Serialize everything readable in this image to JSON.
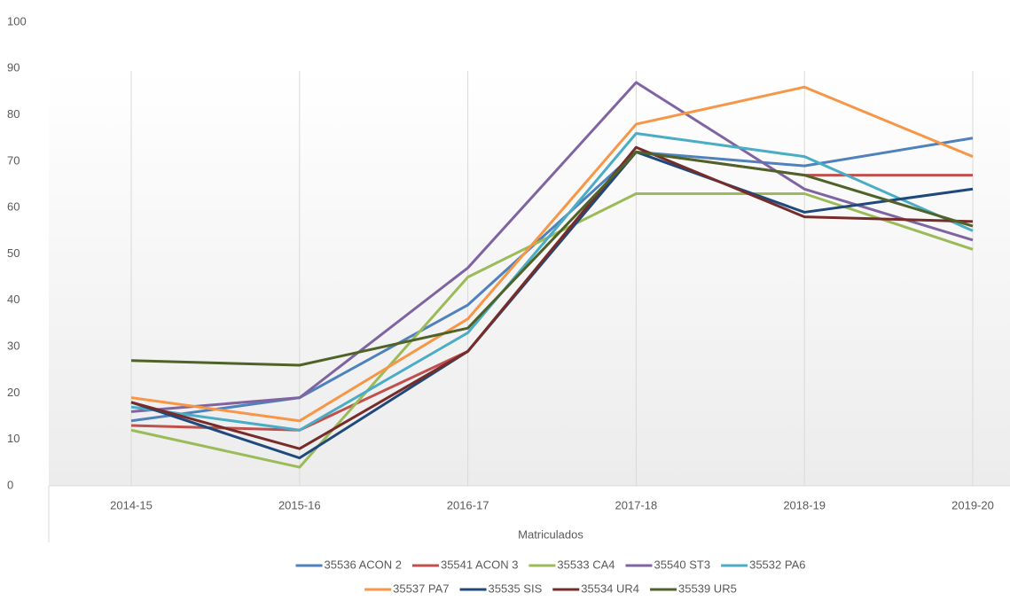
{
  "chart_data": {
    "type": "line",
    "x_label": "Matriculados",
    "categories": [
      "2014-15",
      "2015-16",
      "2016-17",
      "2017-18",
      "2018-19",
      "2019-20"
    ],
    "ylim": [
      0,
      100
    ],
    "yticks": [
      0,
      10,
      20,
      30,
      40,
      50,
      60,
      70,
      80,
      90,
      100
    ],
    "series": [
      {
        "name": "35536 ACON 2",
        "color": "#4f81bd",
        "values": [
          14,
          19,
          39,
          72,
          69,
          75
        ]
      },
      {
        "name": "35541 ACON 3",
        "color": "#c0504d",
        "values": [
          13,
          12,
          29,
          72,
          67,
          67
        ]
      },
      {
        "name": "35533 CA4",
        "color": "#9bbb59",
        "values": [
          12,
          4,
          45,
          63,
          63,
          51
        ]
      },
      {
        "name": "35540 ST3",
        "color": "#8064a2",
        "values": [
          16,
          19,
          47,
          87,
          64,
          53
        ]
      },
      {
        "name": "35532 PA6",
        "color": "#4bacc6",
        "values": [
          17,
          12,
          33,
          76,
          71,
          55
        ]
      },
      {
        "name": "35537 PA7",
        "color": "#f79646",
        "values": [
          19,
          14,
          36,
          78,
          86,
          71
        ]
      },
      {
        "name": "35535 SIS",
        "color": "#1f497d",
        "values": [
          18,
          6,
          29,
          72,
          59,
          64
        ]
      },
      {
        "name": "35534 UR4",
        "color": "#772c2a",
        "values": [
          18,
          8,
          29,
          73,
          58,
          57
        ]
      },
      {
        "name": "35539 UR5",
        "color": "#4f6228",
        "values": [
          27,
          26,
          34,
          72,
          67,
          56
        ]
      }
    ]
  }
}
